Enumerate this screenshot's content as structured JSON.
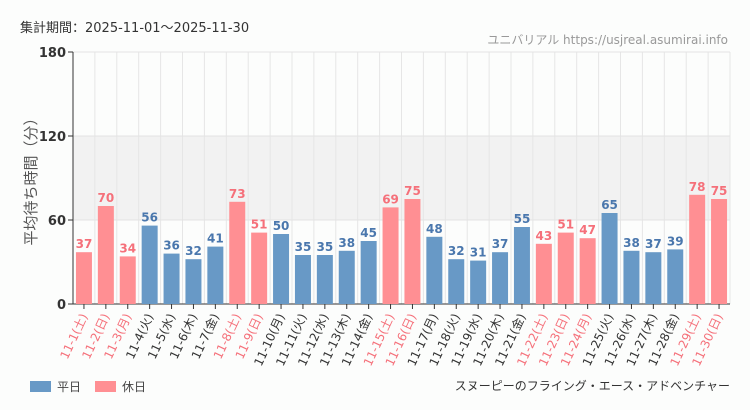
{
  "header": {
    "period": "集計期間：2025-11-01～2025-11-30",
    "credit": "ユニバリアル  https://usjreal.asumirai.info"
  },
  "attraction": "スヌーピーのフライング・エース・アドベンチャー",
  "legend": {
    "weekday": "平日",
    "holiday": "休日"
  },
  "colors": {
    "weekday": "#6899c6",
    "holiday": "#ff8f93",
    "weekday_label": "#4a77ad",
    "holiday_label": "#f5707a",
    "band": "#f2f2f2"
  },
  "chart_data": {
    "type": "bar",
    "ylabel": "平均待ち時間（分）",
    "ylim": [
      0,
      180
    ],
    "yticks": [
      0,
      60,
      120,
      180
    ],
    "grid": true,
    "legend_position": "bottom-left",
    "categories": [
      "11-1(土)",
      "11-2(日)",
      "11-3(月)",
      "11-4(火)",
      "11-5(水)",
      "11-6(木)",
      "11-7(金)",
      "11-8(土)",
      "11-9(日)",
      "11-10(月)",
      "11-11(火)",
      "11-12(水)",
      "11-13(木)",
      "11-14(金)",
      "11-15(土)",
      "11-16(日)",
      "11-17(月)",
      "11-18(火)",
      "11-19(水)",
      "11-20(木)",
      "11-21(金)",
      "11-22(土)",
      "11-23(日)",
      "11-24(月)",
      "11-25(火)",
      "11-26(水)",
      "11-27(木)",
      "11-28(金)",
      "11-29(土)",
      "11-30(日)"
    ],
    "values": [
      37,
      70,
      34,
      56,
      36,
      32,
      41,
      73,
      51,
      50,
      35,
      35,
      38,
      45,
      69,
      75,
      48,
      32,
      31,
      37,
      55,
      43,
      51,
      47,
      65,
      38,
      37,
      39,
      78,
      75
    ],
    "holiday": [
      true,
      true,
      true,
      false,
      false,
      false,
      false,
      true,
      true,
      false,
      false,
      false,
      false,
      false,
      true,
      true,
      false,
      false,
      false,
      false,
      false,
      true,
      true,
      true,
      false,
      false,
      false,
      false,
      true,
      true
    ]
  }
}
